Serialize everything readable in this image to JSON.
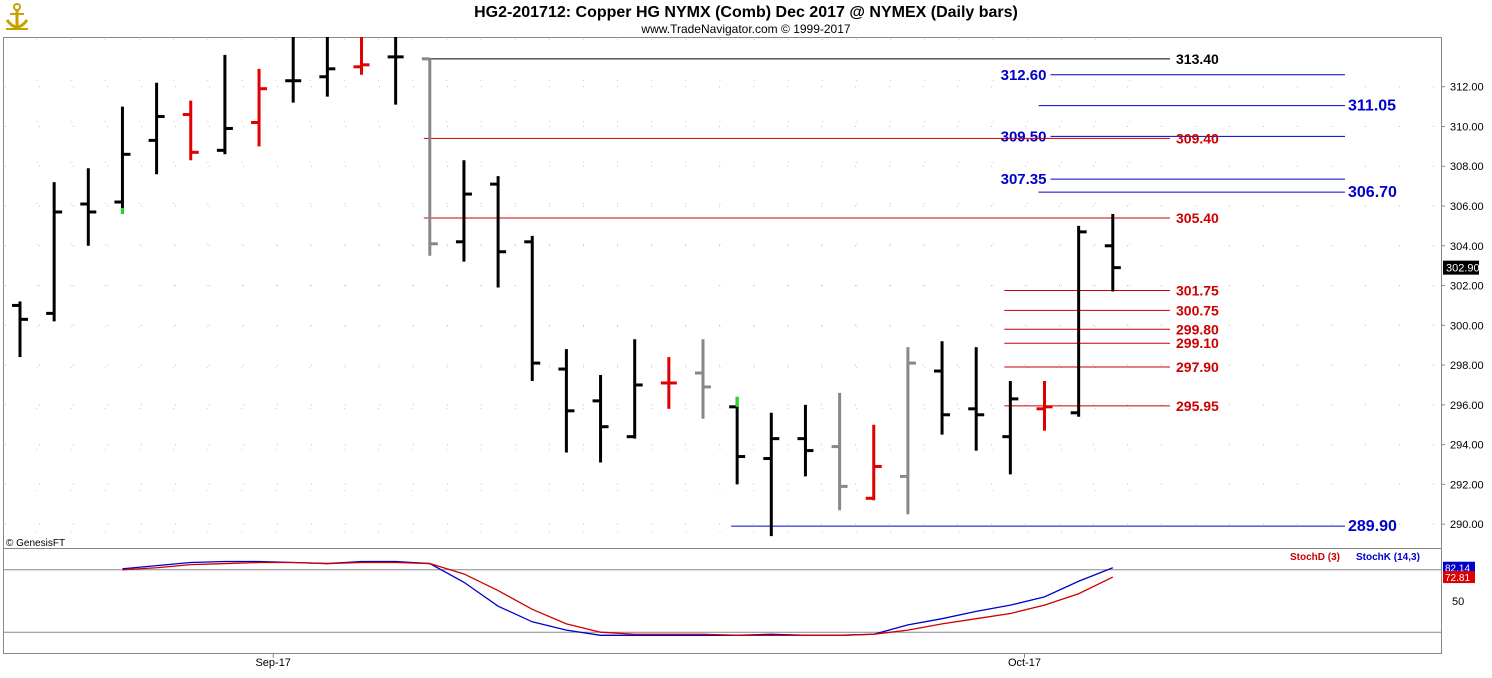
{
  "header": {
    "title": "HG2-201712:  Copper HG NYMX (Comb) Dec 2017 @ NYMEX  (Daily bars)",
    "subtitle": "www.TradeNavigator.com © 1999-2017"
  },
  "credit": "© GenesisFT",
  "icon": "anchor-logo-icon",
  "colors": {
    "up_bar": "#000000",
    "down_bar": "#e00000",
    "neutral_bar": "#888888",
    "signal_bar": "#22dd22",
    "blue_line": "#0000cc",
    "red_line": "#cc0000",
    "black_line": "#000000",
    "stoch_k": "#0000cc",
    "stoch_d": "#cc0000"
  },
  "chart_data": [
    {
      "type": "ohlc",
      "ylim": [
        288.8,
        314.5
      ],
      "y_ticks": [
        290,
        292,
        294,
        296,
        298,
        300,
        302,
        304,
        306,
        308,
        310,
        312
      ],
      "y_tick_labels": [
        "290.00",
        "292.00",
        "294.00",
        "296.00",
        "298.00",
        "300.00",
        "302.00",
        "304.00",
        "306.00",
        "308.00",
        "310.00",
        "312.00"
      ],
      "x_labels": [
        {
          "label": "Sep-17",
          "bar_index": 8
        },
        {
          "label": "Oct-17",
          "bar_index": 30
        }
      ],
      "last_price": "302.90",
      "bars": [
        {
          "o": 301.0,
          "h": 301.2,
          "l": 298.4,
          "c": 300.3,
          "color": "black"
        },
        {
          "o": 300.6,
          "h": 307.2,
          "l": 300.2,
          "c": 305.7,
          "color": "black"
        },
        {
          "o": 306.1,
          "h": 307.9,
          "l": 304.0,
          "c": 305.7,
          "color": "black"
        },
        {
          "o": 306.2,
          "h": 311.0,
          "l": 305.6,
          "c": 308.6,
          "color": "black",
          "low_tick": "green"
        },
        {
          "o": 309.3,
          "h": 312.2,
          "l": 307.6,
          "c": 310.5,
          "color": "black"
        },
        {
          "o": 310.6,
          "h": 311.3,
          "l": 308.3,
          "c": 308.7,
          "color": "red"
        },
        {
          "o": 308.8,
          "h": 313.6,
          "l": 308.6,
          "c": 309.9,
          "color": "black"
        },
        {
          "o": 310.2,
          "h": 312.9,
          "l": 309.0,
          "c": 311.9,
          "color": "red"
        },
        {
          "o": 312.3,
          "h": 314.5,
          "l": 311.2,
          "c": 312.3,
          "color": "black"
        },
        {
          "o": 312.5,
          "h": 314.5,
          "l": 311.5,
          "c": 312.9,
          "color": "black"
        },
        {
          "o": 313.0,
          "h": 314.5,
          "l": 312.6,
          "c": 313.1,
          "color": "red"
        },
        {
          "o": 313.5,
          "h": 314.5,
          "l": 311.1,
          "c": 313.5,
          "color": "black"
        },
        {
          "o": 313.4,
          "h": 313.4,
          "l": 303.5,
          "c": 304.1,
          "color": "gray"
        },
        {
          "o": 304.2,
          "h": 308.3,
          "l": 303.2,
          "c": 306.6,
          "color": "black"
        },
        {
          "o": 307.1,
          "h": 307.5,
          "l": 301.9,
          "c": 303.7,
          "color": "black"
        },
        {
          "o": 304.2,
          "h": 304.5,
          "l": 297.2,
          "c": 298.1,
          "color": "black"
        },
        {
          "o": 297.8,
          "h": 298.8,
          "l": 293.6,
          "c": 295.7,
          "color": "black"
        },
        {
          "o": 296.2,
          "h": 297.5,
          "l": 293.1,
          "c": 294.9,
          "color": "black"
        },
        {
          "o": 294.4,
          "h": 299.3,
          "l": 294.3,
          "c": 297.0,
          "color": "black"
        },
        {
          "o": 297.1,
          "h": 298.4,
          "l": 295.8,
          "c": 297.1,
          "color": "red"
        },
        {
          "o": 297.6,
          "h": 299.3,
          "l": 295.3,
          "c": 296.9,
          "color": "gray"
        },
        {
          "o": 295.9,
          "h": 296.4,
          "l": 292.0,
          "c": 293.4,
          "color": "black",
          "high_tick": "green"
        },
        {
          "o": 293.3,
          "h": 295.6,
          "l": 289.4,
          "c": 294.3,
          "color": "black"
        },
        {
          "o": 294.3,
          "h": 296.0,
          "l": 292.4,
          "c": 293.7,
          "color": "black"
        },
        {
          "o": 293.9,
          "h": 296.6,
          "l": 290.7,
          "c": 291.9,
          "color": "gray"
        },
        {
          "o": 291.3,
          "h": 295.0,
          "l": 291.2,
          "c": 292.9,
          "color": "red"
        },
        {
          "o": 292.4,
          "h": 298.9,
          "l": 290.5,
          "c": 298.1,
          "color": "gray"
        },
        {
          "o": 297.7,
          "h": 299.2,
          "l": 294.5,
          "c": 295.5,
          "color": "black"
        },
        {
          "o": 295.8,
          "h": 298.9,
          "l": 293.7,
          "c": 295.5,
          "color": "black"
        },
        {
          "o": 294.4,
          "h": 297.2,
          "l": 292.5,
          "c": 296.3,
          "color": "black"
        },
        {
          "o": 295.8,
          "h": 297.2,
          "l": 294.7,
          "c": 295.9,
          "color": "red"
        },
        {
          "o": 295.6,
          "h": 305.0,
          "l": 295.4,
          "c": 304.7,
          "color": "black"
        },
        {
          "o": 304.0,
          "h": 305.6,
          "l": 301.7,
          "c": 302.9,
          "color": "black"
        }
      ],
      "levels": [
        {
          "value": 313.4,
          "label": "313.40",
          "color": "black",
          "from_bar": 12,
          "label_side": "right"
        },
        {
          "value": 312.6,
          "label": "312.60",
          "color": "blue",
          "from_bar": 30,
          "label_side": "left"
        },
        {
          "value": 311.05,
          "label": "311.05",
          "color": "blue",
          "from_bar": 30,
          "label_side": "far"
        },
        {
          "value": 309.5,
          "label": "309.50",
          "color": "blue",
          "from_bar": 30,
          "label_side": "left"
        },
        {
          "value": 309.4,
          "label": "309.40",
          "color": "red",
          "from_bar": 12,
          "label_side": "right"
        },
        {
          "value": 307.35,
          "label": "307.35",
          "color": "blue",
          "from_bar": 30,
          "label_side": "left"
        },
        {
          "value": 306.7,
          "label": "306.70",
          "color": "blue",
          "from_bar": 30,
          "label_side": "far"
        },
        {
          "value": 305.4,
          "label": "305.40",
          "color": "red",
          "from_bar": 12,
          "label_side": "right"
        },
        {
          "value": 301.75,
          "label": "301.75",
          "color": "red",
          "from_bar": 29,
          "label_side": "right"
        },
        {
          "value": 300.75,
          "label": "300.75",
          "color": "red",
          "from_bar": 29,
          "label_side": "right"
        },
        {
          "value": 299.8,
          "label": "299.80",
          "color": "red",
          "from_bar": 29,
          "label_side": "right"
        },
        {
          "value": 299.1,
          "label": "299.10",
          "color": "red",
          "from_bar": 29,
          "label_side": "right"
        },
        {
          "value": 297.9,
          "label": "297.90",
          "color": "red",
          "from_bar": 29,
          "label_side": "right"
        },
        {
          "value": 295.95,
          "label": "295.95",
          "color": "red",
          "from_bar": 29,
          "label_side": "right"
        },
        {
          "value": 289.9,
          "label": "289.90",
          "color": "blue",
          "from_bar": 21,
          "label_side": "far"
        }
      ]
    },
    {
      "type": "line",
      "indicator": "stochastic",
      "ylim": [
        0,
        100
      ],
      "y_ticks": [
        50
      ],
      "y_tick_labels": [
        "50"
      ],
      "reference_lines": [
        80,
        20
      ],
      "series": [
        {
          "name": "StochK (14,3)",
          "color": "blue",
          "last_label": "82.14",
          "values": [
            81,
            84,
            87,
            88,
            88,
            87,
            86,
            88,
            88,
            86,
            68,
            45,
            30,
            22,
            17,
            17,
            17,
            17,
            17,
            18,
            17,
            17,
            18,
            27,
            33,
            40,
            46,
            54,
            69,
            82
          ]
        },
        {
          "name": "StochD (3)",
          "color": "red",
          "last_label": "72.81",
          "values": [
            80,
            82,
            85,
            86,
            87,
            87,
            86,
            87,
            87,
            86,
            76,
            60,
            42,
            28,
            20,
            18,
            18,
            18,
            17,
            17,
            17,
            17,
            18,
            22,
            28,
            33,
            38,
            46,
            57,
            73
          ]
        }
      ],
      "legend": [
        "StochD (3)",
        "StochK (14,3)"
      ],
      "legend_placement": "top-right"
    }
  ]
}
